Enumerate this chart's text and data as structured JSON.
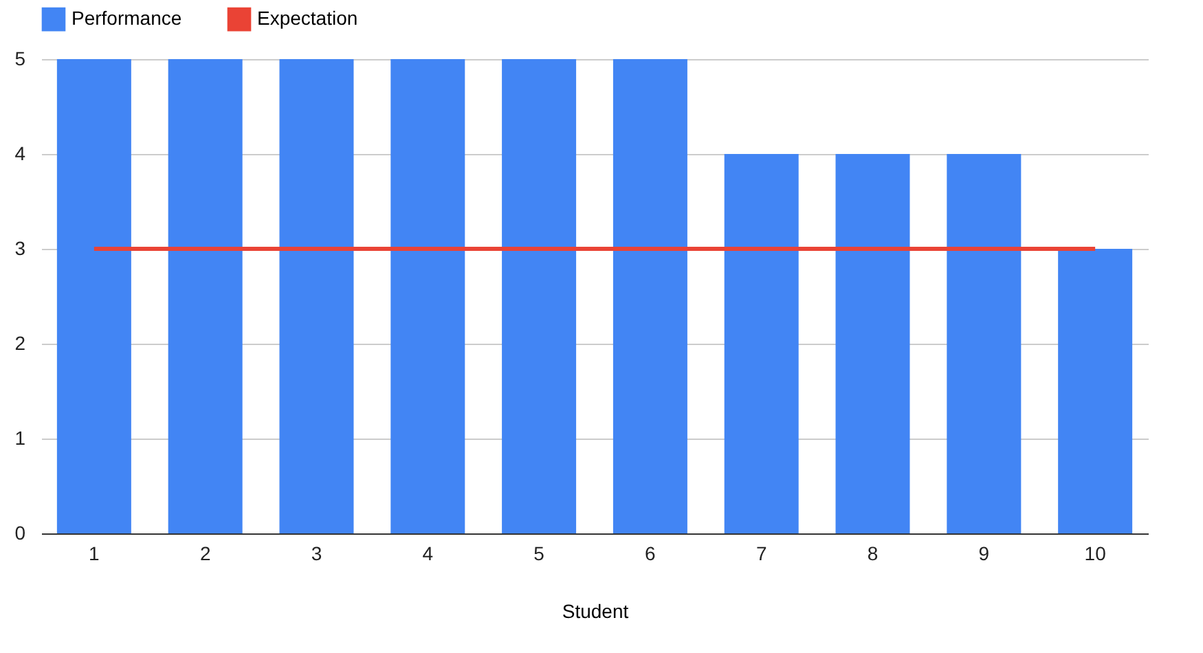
{
  "chart_data": {
    "type": "bar",
    "xlabel": "Student",
    "categories": [
      "1",
      "2",
      "3",
      "4",
      "5",
      "6",
      "7",
      "8",
      "9",
      "10"
    ],
    "series": [
      {
        "name": "Performance",
        "color": "#4285f4",
        "values": [
          5,
          5,
          5,
          5,
          5,
          5,
          4,
          4,
          4,
          3
        ]
      },
      {
        "name": "Expectation",
        "type": "line",
        "color": "#ea4335",
        "values": [
          3,
          3,
          3,
          3,
          3,
          3,
          3,
          3,
          3,
          3
        ]
      }
    ],
    "ylim": [
      0,
      5
    ],
    "yticks": [
      0,
      1,
      2,
      3,
      4,
      5
    ],
    "grid": "y",
    "legend": "top"
  }
}
